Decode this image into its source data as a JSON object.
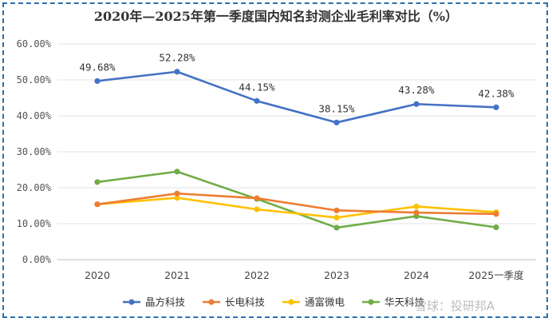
{
  "chart_data": {
    "type": "line",
    "title": "2020年—2025年第一季度国内知名封测企业毛利率对比（%）",
    "categories": [
      "2020",
      "2021",
      "2022",
      "2023",
      "2024",
      "2025一季度"
    ],
    "ylim": [
      0,
      60
    ],
    "yticks": [
      "0.00%",
      "10.00%",
      "20.00%",
      "30.00%",
      "40.00%",
      "50.00%",
      "60.00%"
    ],
    "grid": true,
    "legend_position": "bottom",
    "series": [
      {
        "name": "晶方科技",
        "color": "#4472c4",
        "values": [
          49.68,
          52.28,
          44.15,
          38.15,
          43.28,
          42.38
        ],
        "labels": [
          "49.68%",
          "52.28%",
          "44.15%",
          "38.15%",
          "43.28%",
          "42.38%"
        ]
      },
      {
        "name": "长电科技",
        "color": "#ed7d31",
        "values": [
          15.4,
          18.4,
          17.1,
          13.7,
          13.1,
          12.7
        ]
      },
      {
        "name": "通富微电",
        "color": "#ffc000",
        "values": [
          15.4,
          17.2,
          14.0,
          11.7,
          14.8,
          13.2
        ]
      },
      {
        "name": "华天科技",
        "color": "#70ad47",
        "values": [
          21.6,
          24.5,
          16.9,
          8.9,
          12.1,
          9.0
        ]
      }
    ]
  },
  "watermark": "雪球：投研邦A"
}
